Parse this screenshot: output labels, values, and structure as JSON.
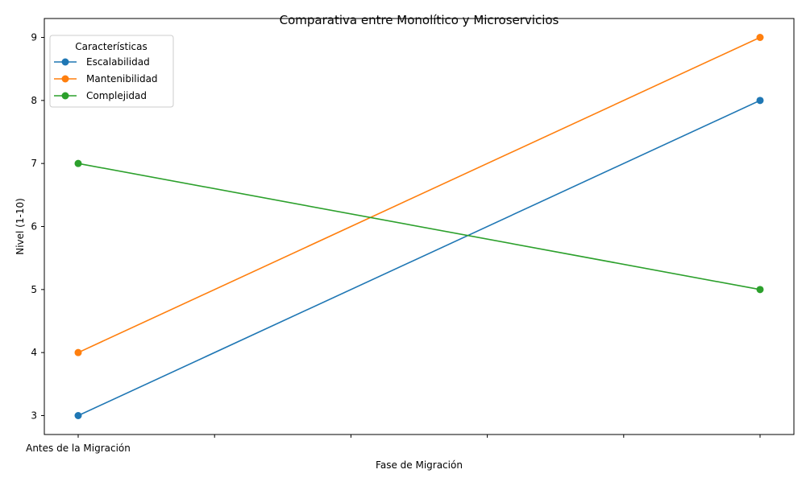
{
  "chart_data": {
    "type": "line",
    "title": "Comparativa entre Monolítico y Microservicios",
    "xlabel": "Fase de Migración",
    "ylabel": "Nivel (1-10)",
    "categories": [
      "Antes de la Migración",
      "",
      "",
      "",
      "",
      ""
    ],
    "yticks": [
      3,
      4,
      5,
      6,
      7,
      8,
      9
    ],
    "ylim": [
      2.7,
      9.3
    ],
    "grid": false,
    "legend": {
      "title": "Características",
      "position": "top-left"
    },
    "series": [
      {
        "name": "Escalabilidad",
        "color": "#1f77b4",
        "x": [
          0,
          5
        ],
        "values": [
          3,
          8
        ]
      },
      {
        "name": "Mantenibilidad",
        "color": "#ff7f0e",
        "x": [
          0,
          5
        ],
        "values": [
          4,
          9
        ]
      },
      {
        "name": "Complejidad",
        "color": "#2ca02c",
        "x": [
          0,
          5
        ],
        "values": [
          7,
          5
        ]
      }
    ]
  }
}
